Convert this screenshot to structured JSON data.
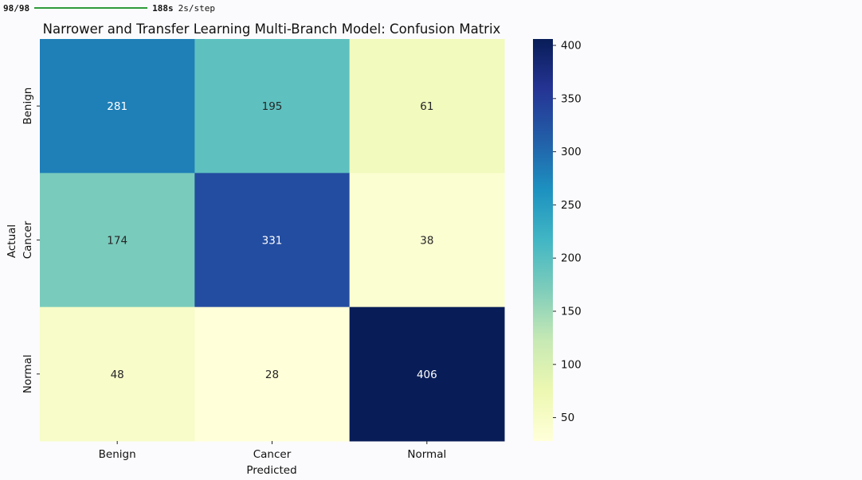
{
  "progress": {
    "count": "98/98",
    "fraction": 1.0,
    "elapsed": "188s",
    "rate": "2s/step"
  },
  "chart_data": {
    "type": "heatmap",
    "title": "Narrower and Transfer Learning Multi-Branch Model: Confusion Matrix",
    "xlabel": "Predicted",
    "ylabel": "Actual",
    "x_categories": [
      "Benign",
      "Cancer",
      "Normal"
    ],
    "y_categories": [
      "Benign",
      "Cancer",
      "Normal"
    ],
    "values": [
      [
        281,
        195,
        61
      ],
      [
        174,
        331,
        38
      ],
      [
        48,
        28,
        406
      ]
    ],
    "colormap": "YlGnBu",
    "colorbar": {
      "vmin": 28,
      "vmax": 406,
      "ticks": [
        50,
        100,
        150,
        200,
        250,
        300,
        350,
        400
      ]
    },
    "annotations": true,
    "grid": false
  }
}
